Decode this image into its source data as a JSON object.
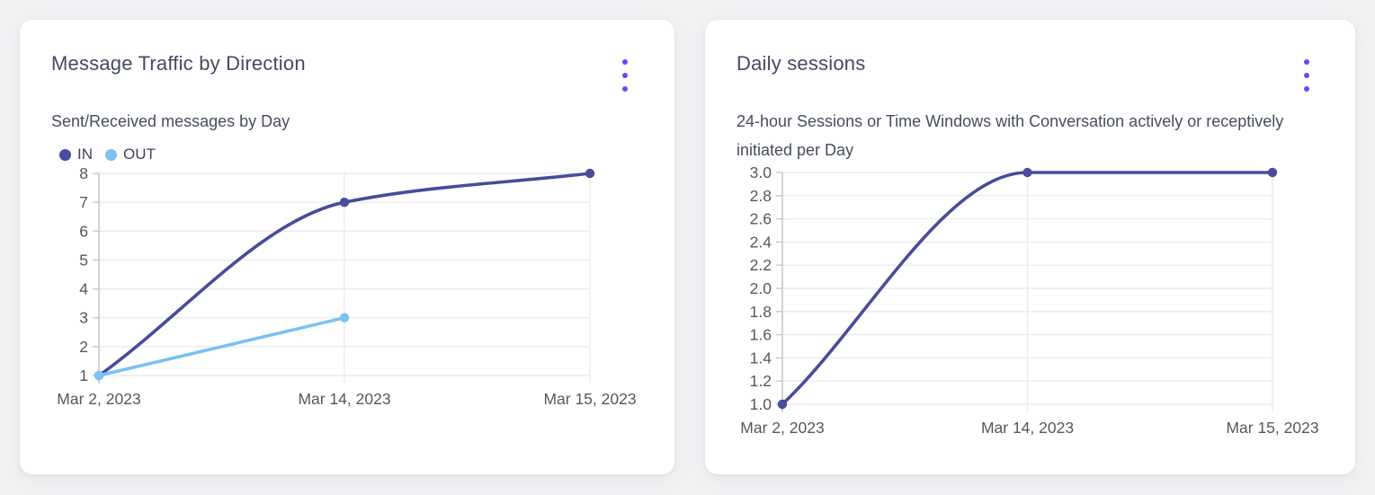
{
  "page": {
    "background_color": "#f1f1f4",
    "card_background": "#ffffff"
  },
  "colors": {
    "accent_menu": "#5652f0",
    "line_primary": "#474c9c",
    "line_secondary": "#7cc1f0",
    "grid": "#ebebef",
    "axis": "#c6c7cf",
    "title_text": "#454b5e",
    "tick_text": "#55585f"
  },
  "cards": [
    {
      "title": "Message Traffic by Direction",
      "subtitle": "Sent/Received messages by Day",
      "menu_icon": "kebab-menu-icon",
      "legend": [
        {
          "label": "IN",
          "color": "#474c9c"
        },
        {
          "label": "OUT",
          "color": "#7cc1f0"
        }
      ]
    },
    {
      "title": "Daily sessions",
      "subtitle": "24-hour Sessions or Time Windows with Conversation actively or receptively initiated per Day",
      "menu_icon": "kebab-menu-icon",
      "legend": []
    }
  ],
  "chart_data": [
    {
      "type": "line",
      "title": "Message Traffic by Direction",
      "subtitle": "Sent/Received messages by Day",
      "categories": [
        "Mar 2, 2023",
        "Mar 14, 2023",
        "Mar 15, 2023"
      ],
      "series": [
        {
          "name": "IN",
          "color": "#474c9c",
          "values": [
            1,
            7,
            8
          ]
        },
        {
          "name": "OUT",
          "color": "#7cc1f0",
          "values": [
            1,
            3,
            null
          ]
        }
      ],
      "ylim": [
        1,
        8
      ],
      "ytick_step": 1,
      "ytick_decimals": 0,
      "grid": true,
      "legend_position": "top-left",
      "curve": "monotone"
    },
    {
      "type": "line",
      "title": "Daily sessions",
      "subtitle": "24-hour Sessions or Time Windows with Conversation actively or receptively initiated per Day",
      "categories": [
        "Mar 2, 2023",
        "Mar 14, 2023",
        "Mar 15, 2023"
      ],
      "series": [
        {
          "name": "Daily sessions",
          "color": "#474c9c",
          "values": [
            1.0,
            3.0,
            3.0
          ]
        }
      ],
      "ylim": [
        1.0,
        3.0
      ],
      "ytick_step": 0.2,
      "ytick_decimals": 1,
      "grid": true,
      "legend_position": "none",
      "curve": "monotone"
    }
  ]
}
